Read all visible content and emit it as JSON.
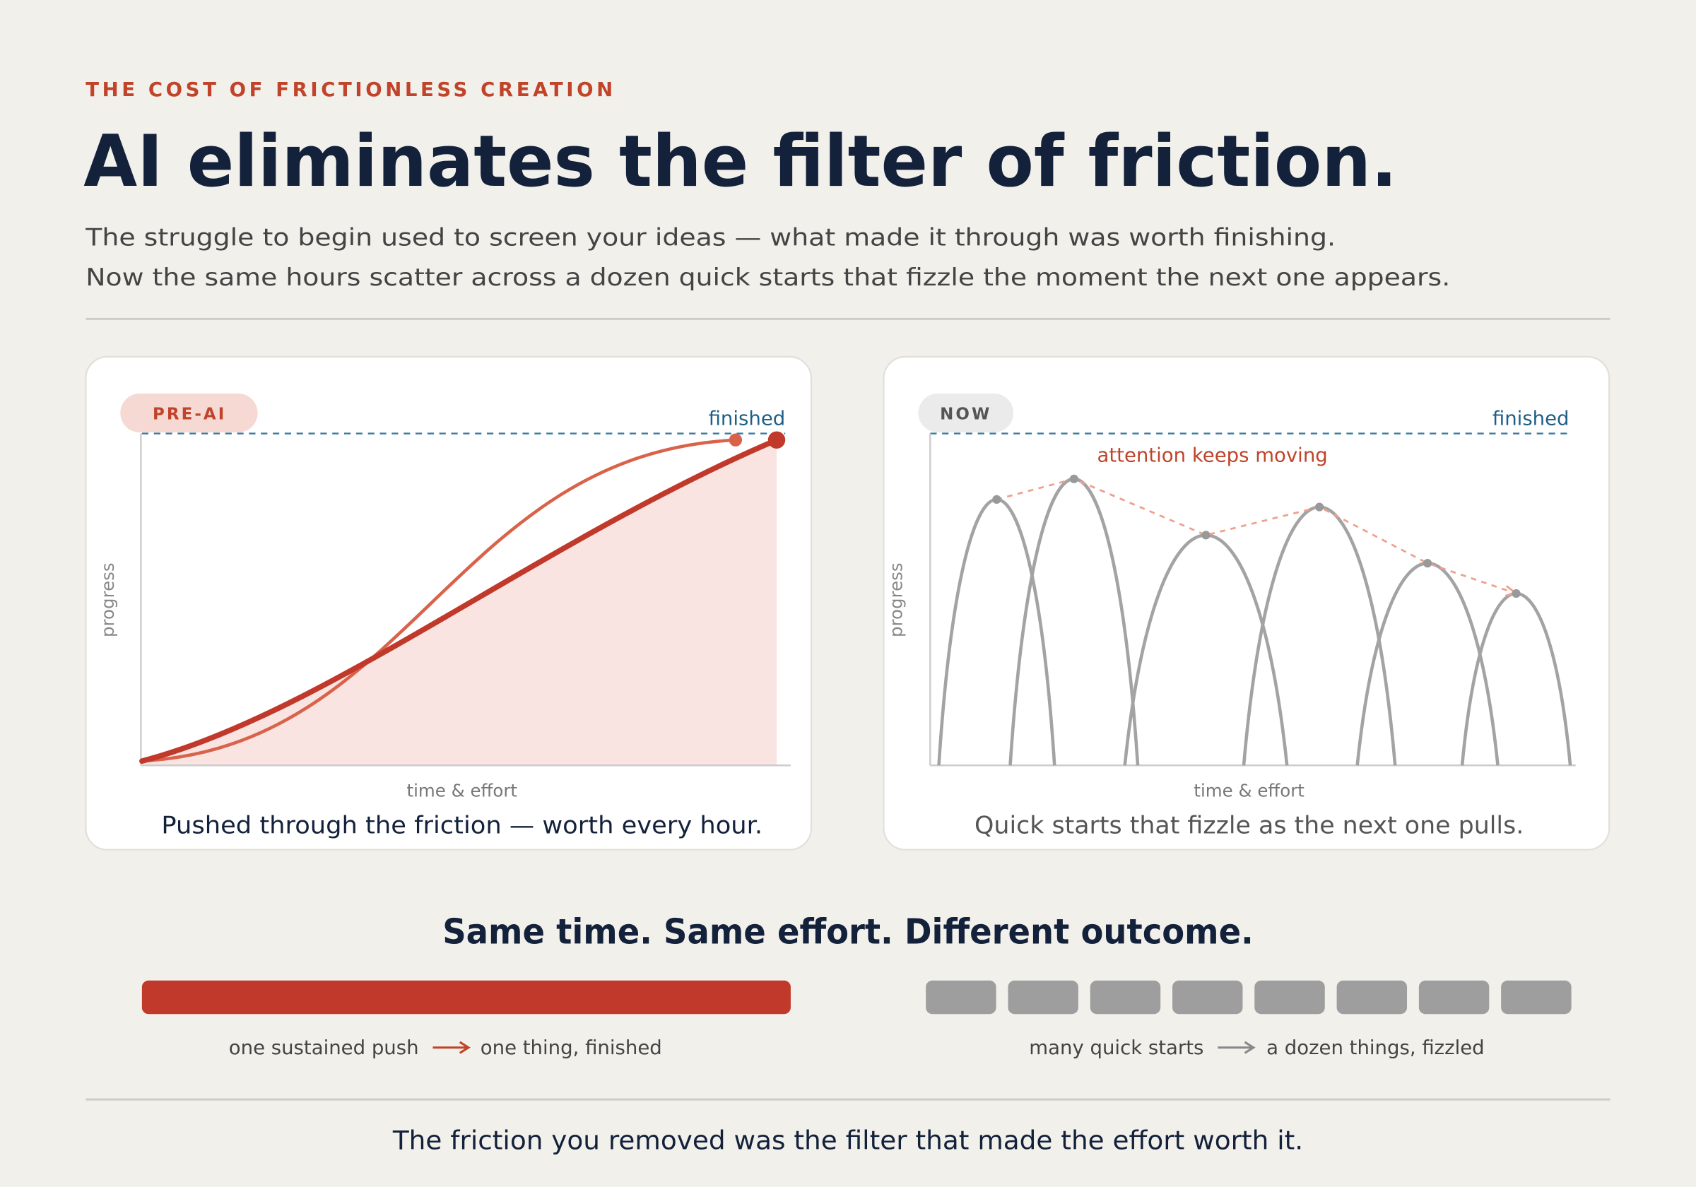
{
  "header": {
    "eyebrow": "THE COST OF FRICTIONLESS CREATION",
    "title": "AI eliminates the filter of friction.",
    "subtitle": [
      "The struggle to begin used to screen your ideas — what made it through was worth finishing.",
      "Now the same hours scatter across a dozen quick starts that fizzle the moment the next one appears."
    ]
  },
  "panels": [
    {
      "badge": "PRE-AI",
      "target_label": "finished",
      "y_axis": "progress",
      "x_axis": "time & effort",
      "caption": "Pushed through the friction — worth every hour."
    },
    {
      "badge": "NOW",
      "target_label": "finished",
      "annotation": "attention keeps moving",
      "y_axis": "progress",
      "x_axis": "time & effort",
      "caption": "Quick starts that fizzle as the next one pulls."
    }
  ],
  "comparison": {
    "heading": "Same time. Same effort. Different outcome.",
    "left": {
      "from": "one sustained push",
      "to": "one thing, finished"
    },
    "right": {
      "from": "many quick starts",
      "to": "a dozen things, fizzled"
    }
  },
  "footer": "The friction you removed was the filter that made the effort worth it."
}
